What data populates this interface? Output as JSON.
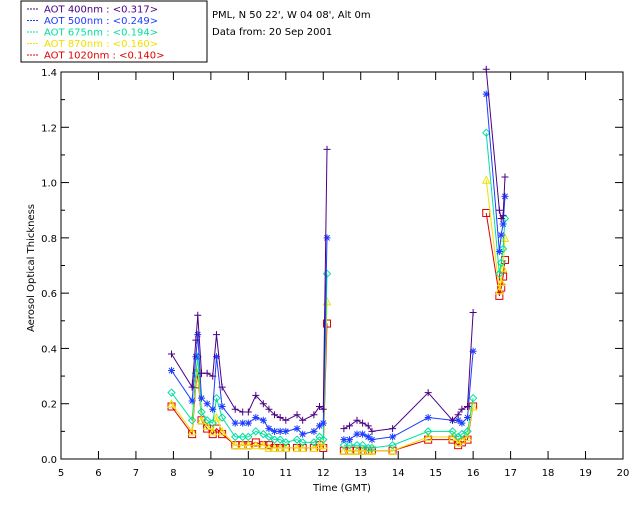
{
  "header": {
    "site_line": "PML, N 50 22', W 04 08', Alt 0m",
    "date_line": "Data from: 20 Sep 2001"
  },
  "legend": [
    {
      "label": "AOT  400nm : <0.317>",
      "color": "#4b0082"
    },
    {
      "label": "AOT  500nm : <0.249>",
      "color": "#1e3cff"
    },
    {
      "label": "AOT  675nm : <0.194>",
      "color": "#00e0a0"
    },
    {
      "label": "AOT  870nm : <0.160>",
      "color": "#f0e000"
    },
    {
      "label": "AOT 1020nm : <0.140>",
      "color": "#e00000"
    }
  ],
  "chart_data": {
    "type": "line",
    "xlabel": "Time (GMT)",
    "ylabel": "Aerosol Optical Thickness",
    "xlim": [
      5,
      20
    ],
    "ylim": [
      0,
      1.4
    ],
    "x_ticks": [
      5,
      6,
      7,
      8,
      9,
      10,
      11,
      12,
      13,
      14,
      15,
      16,
      17,
      18,
      19,
      20
    ],
    "y_ticks": [
      "0.0",
      "0.2",
      "0.4",
      "0.6",
      "0.8",
      "1.0",
      "1.2",
      "1.4"
    ],
    "x": [
      7.95,
      8.5,
      8.6,
      8.65,
      8.75,
      8.9,
      9.05,
      9.15,
      9.3,
      9.65,
      9.85,
      10.0,
      10.2,
      10.4,
      10.55,
      10.7,
      10.85,
      11.0,
      11.3,
      11.45,
      11.75,
      11.9,
      12.0,
      12.1,
      12.2,
      12.55,
      12.7,
      12.9,
      13.05,
      13.2,
      13.3,
      13.85,
      14.8,
      15.45,
      15.6,
      15.7,
      15.85,
      16.0,
      16.15,
      16.35,
      16.7,
      16.75,
      16.8,
      16.85
    ],
    "series": [
      {
        "name": "AOT  400nm : <0.317>",
        "marker": "plus",
        "values": [
          0.38,
          0.26,
          0.43,
          0.52,
          0.31,
          0.31,
          0.3,
          0.45,
          0.26,
          0.18,
          0.17,
          0.17,
          0.23,
          0.2,
          0.18,
          0.16,
          0.15,
          0.14,
          0.16,
          0.14,
          0.16,
          0.19,
          0.18,
          1.12,
          null,
          0.11,
          0.12,
          0.14,
          0.13,
          0.12,
          0.1,
          0.11,
          0.24,
          0.14,
          0.16,
          0.18,
          0.19,
          0.53,
          null,
          1.41,
          0.9,
          0.87,
          0.88,
          1.02
        ]
      },
      {
        "name": "AOT  500nm : <0.249>",
        "marker": "asterisk",
        "values": [
          0.32,
          0.21,
          0.37,
          0.45,
          0.22,
          0.2,
          0.18,
          0.37,
          0.19,
          0.13,
          0.13,
          0.13,
          0.15,
          0.14,
          0.11,
          0.1,
          0.1,
          0.1,
          0.11,
          0.09,
          0.1,
          0.12,
          0.13,
          0.8,
          null,
          0.07,
          0.07,
          0.09,
          0.09,
          0.08,
          0.07,
          0.08,
          0.15,
          0.14,
          0.14,
          0.13,
          0.15,
          0.39,
          null,
          1.32,
          0.75,
          0.81,
          0.85,
          0.95
        ]
      },
      {
        "name": "AOT  675nm : <0.194>",
        "marker": "diamond",
        "values": [
          0.24,
          0.14,
          0.31,
          0.37,
          0.17,
          0.14,
          0.13,
          0.22,
          0.15,
          0.08,
          0.08,
          0.08,
          0.1,
          0.09,
          0.08,
          0.07,
          0.07,
          0.06,
          0.07,
          0.06,
          0.06,
          0.08,
          0.07,
          0.67,
          null,
          0.05,
          0.05,
          0.05,
          0.05,
          0.04,
          0.04,
          0.05,
          0.1,
          0.1,
          0.08,
          0.09,
          0.1,
          0.22,
          null,
          1.18,
          0.67,
          0.71,
          0.76,
          0.87
        ]
      },
      {
        "name": "AOT  870nm : <0.160>",
        "marker": "triangle",
        "values": [
          0.2,
          0.1,
          0.28,
          0.33,
          0.14,
          0.12,
          0.1,
          0.15,
          0.1,
          0.05,
          0.05,
          0.05,
          0.05,
          0.05,
          0.04,
          0.04,
          0.04,
          0.04,
          0.04,
          0.04,
          0.04,
          0.05,
          0.05,
          0.57,
          null,
          0.03,
          0.03,
          0.03,
          0.03,
          0.03,
          0.03,
          0.03,
          0.08,
          0.08,
          0.06,
          0.07,
          0.08,
          0.19,
          null,
          1.01,
          0.61,
          0.64,
          0.69,
          0.8
        ]
      },
      {
        "name": "AOT 1020nm : <0.140>",
        "marker": "square",
        "values": [
          0.19,
          0.09,
          0.27,
          0.31,
          0.14,
          0.11,
          0.09,
          0.11,
          0.09,
          0.05,
          0.05,
          0.05,
          0.06,
          0.05,
          0.05,
          0.04,
          0.04,
          0.04,
          0.04,
          0.04,
          0.04,
          0.05,
          0.04,
          0.49,
          null,
          0.03,
          0.03,
          0.03,
          0.03,
          0.03,
          0.03,
          0.03,
          0.07,
          0.07,
          0.05,
          0.06,
          0.07,
          0.19,
          null,
          0.89,
          0.59,
          0.62,
          0.66,
          0.72
        ]
      }
    ]
  }
}
